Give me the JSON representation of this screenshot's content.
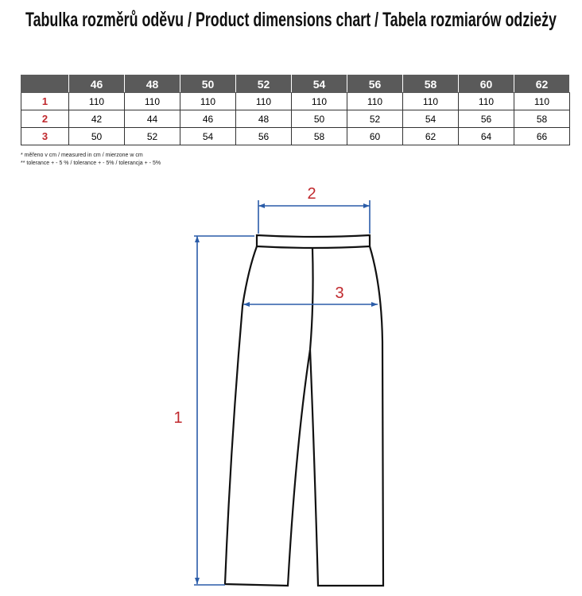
{
  "title": "Tabulka rozměrů oděvu / Product dimensions chart / Tabela rozmiarów odzieży",
  "table": {
    "header": [
      "46",
      "48",
      "50",
      "52",
      "54",
      "56",
      "58",
      "60",
      "62"
    ],
    "rows": [
      {
        "label": "1",
        "values": [
          110,
          110,
          110,
          110,
          110,
          110,
          110,
          110,
          110
        ]
      },
      {
        "label": "2",
        "values": [
          42,
          44,
          46,
          48,
          50,
          52,
          54,
          56,
          58
        ]
      },
      {
        "label": "3",
        "values": [
          50,
          52,
          54,
          56,
          58,
          60,
          62,
          64,
          66
        ]
      }
    ]
  },
  "notes": [
    "* měřeno v cm / measured in cm / mierzone w cm",
    "** tolerance + - 5 % / tolerance + - 5% / tolerancja + - 5%"
  ],
  "diagram": {
    "labels": [
      "1",
      "2",
      "3"
    ]
  }
}
